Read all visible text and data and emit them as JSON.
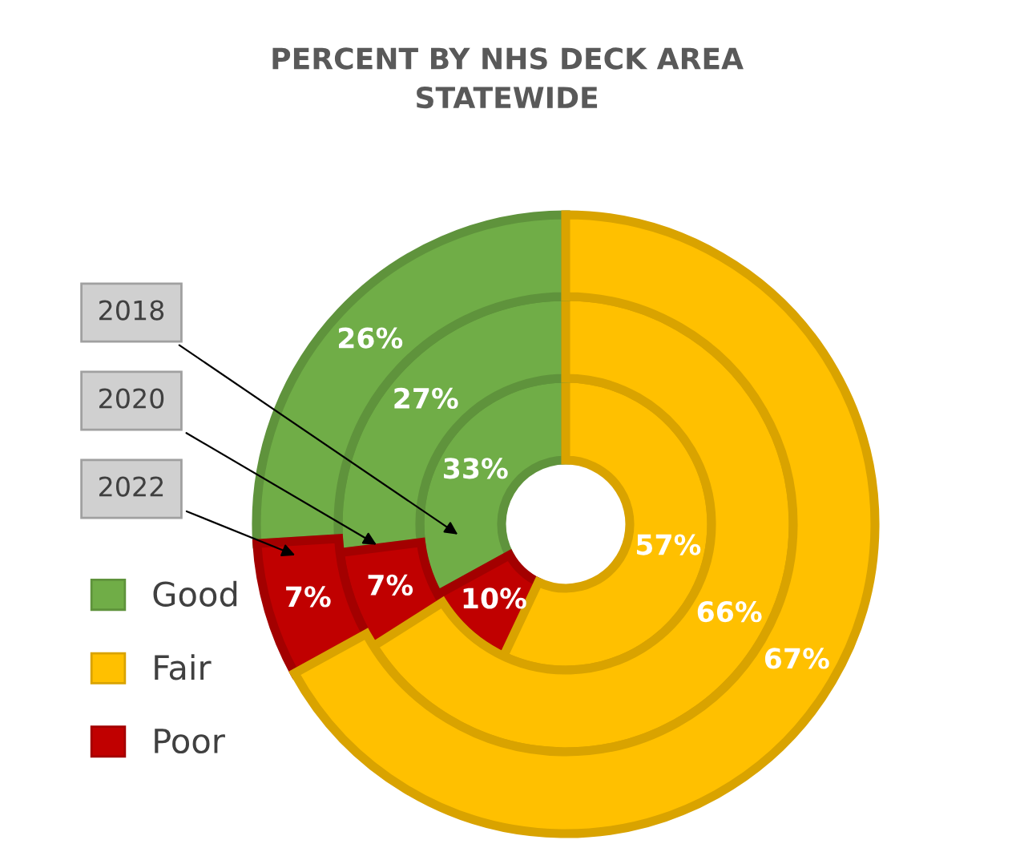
{
  "chart_data": {
    "type": "donut",
    "title": "PERCENT BY NHS DECK AREA\nSTATEWIDE",
    "categories": [
      "Good",
      "Fair",
      "Poor"
    ],
    "colors": [
      "#70ad47",
      "#ffc000",
      "#c00000"
    ],
    "series": [
      {
        "name": "2018",
        "values": [
          33,
          57,
          10
        ],
        "value_labels": [
          "33%",
          "57%",
          "10%"
        ]
      },
      {
        "name": "2020",
        "values": [
          27,
          66,
          7
        ],
        "value_labels": [
          "27%",
          "66%",
          "7%"
        ]
      },
      {
        "name": "2022",
        "values": [
          26,
          67,
          7
        ],
        "value_labels": [
          "26%",
          "67%",
          "7%"
        ]
      }
    ],
    "legend": "left"
  }
}
